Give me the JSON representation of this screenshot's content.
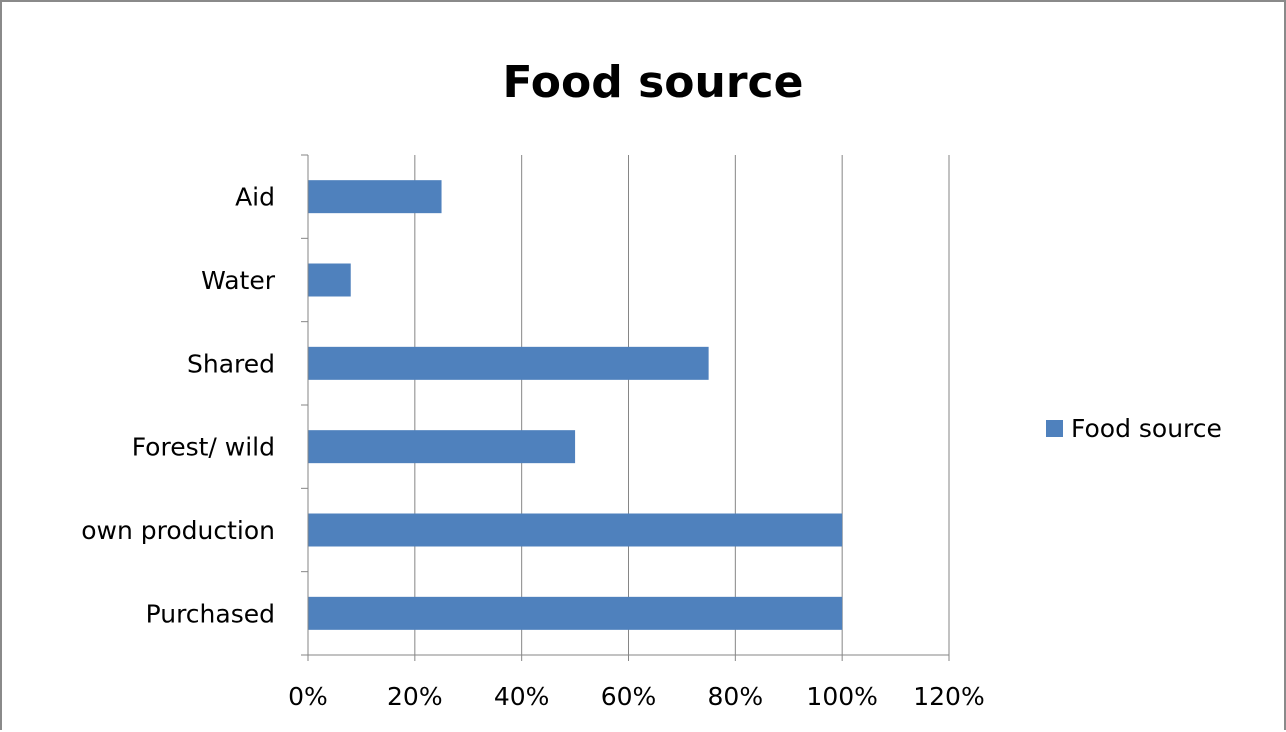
{
  "chart_data": {
    "type": "bar",
    "orientation": "horizontal",
    "title": "Food source",
    "categories": [
      "Purchased",
      "own production",
      "Forest/ wild",
      "Shared",
      "Water",
      "Aid"
    ],
    "series": [
      {
        "name": "Food source",
        "values": [
          1.0,
          1.0,
          0.5,
          0.75,
          0.08,
          0.25
        ],
        "color": "#4F81BD"
      }
    ],
    "xlim": [
      0,
      1.2
    ],
    "x_ticks": [
      {
        "value": 0,
        "label": "0%"
      },
      {
        "value": 0.2,
        "label": "20%"
      },
      {
        "value": 0.4,
        "label": "40%"
      },
      {
        "value": 0.6,
        "label": "60%"
      },
      {
        "value": 0.8,
        "label": "80%"
      },
      {
        "value": 1.0,
        "label": "100%"
      },
      {
        "value": 1.2,
        "label": "120%"
      }
    ],
    "xlabel": "",
    "ylabel": "",
    "grid": "vertical major gridlines",
    "legend_position": "right",
    "colors": {
      "bar": "#4F81BD",
      "grid": "#868686",
      "axis": "#868686"
    }
  }
}
